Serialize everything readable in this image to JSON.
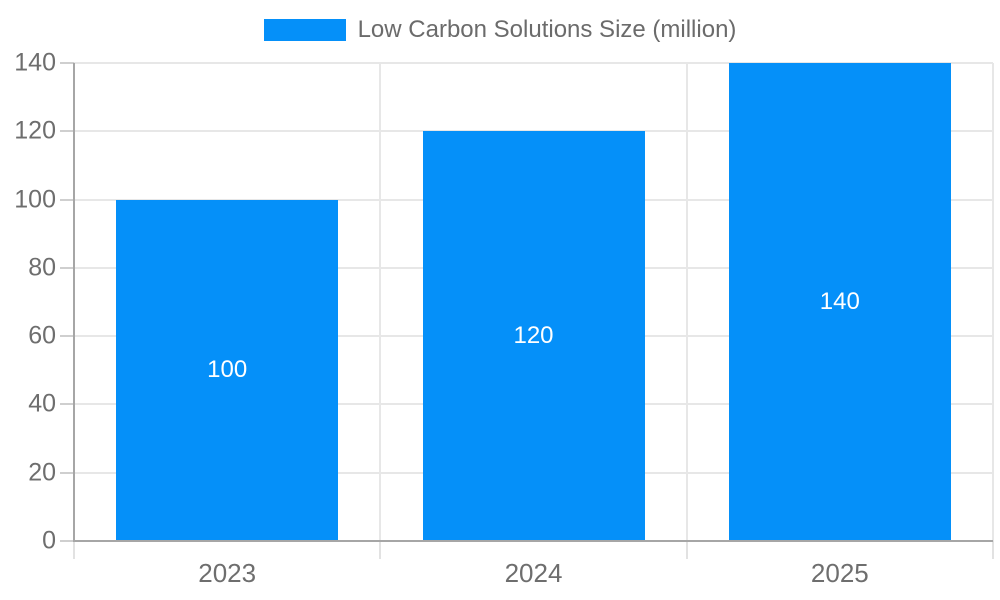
{
  "legend": {
    "label": "Low Carbon Solutions Size (million)"
  },
  "colors": {
    "bar": "#0590f9",
    "bar_label": "#ffffff",
    "axis_text": "#6e6e6e",
    "legend_text": "#6b6b6b",
    "grid": "#e7e7e7",
    "axis_line": "#a6a6a6",
    "tick": "#cfcfcf"
  },
  "chart_data": {
    "type": "bar",
    "title": "",
    "series": [
      {
        "name": "Low Carbon Solutions Size (million)",
        "values": [
          100,
          120,
          140
        ]
      }
    ],
    "categories": [
      "2023",
      "2024",
      "2025"
    ],
    "data_labels": [
      "100",
      "120",
      "140"
    ],
    "xlabel": "",
    "ylabel": "",
    "ylim": [
      0,
      140
    ],
    "yticks": [
      0,
      20,
      40,
      60,
      80,
      100,
      120,
      140
    ],
    "grid": true,
    "legend_position": "top-center",
    "bar_color": "#0590f9"
  }
}
